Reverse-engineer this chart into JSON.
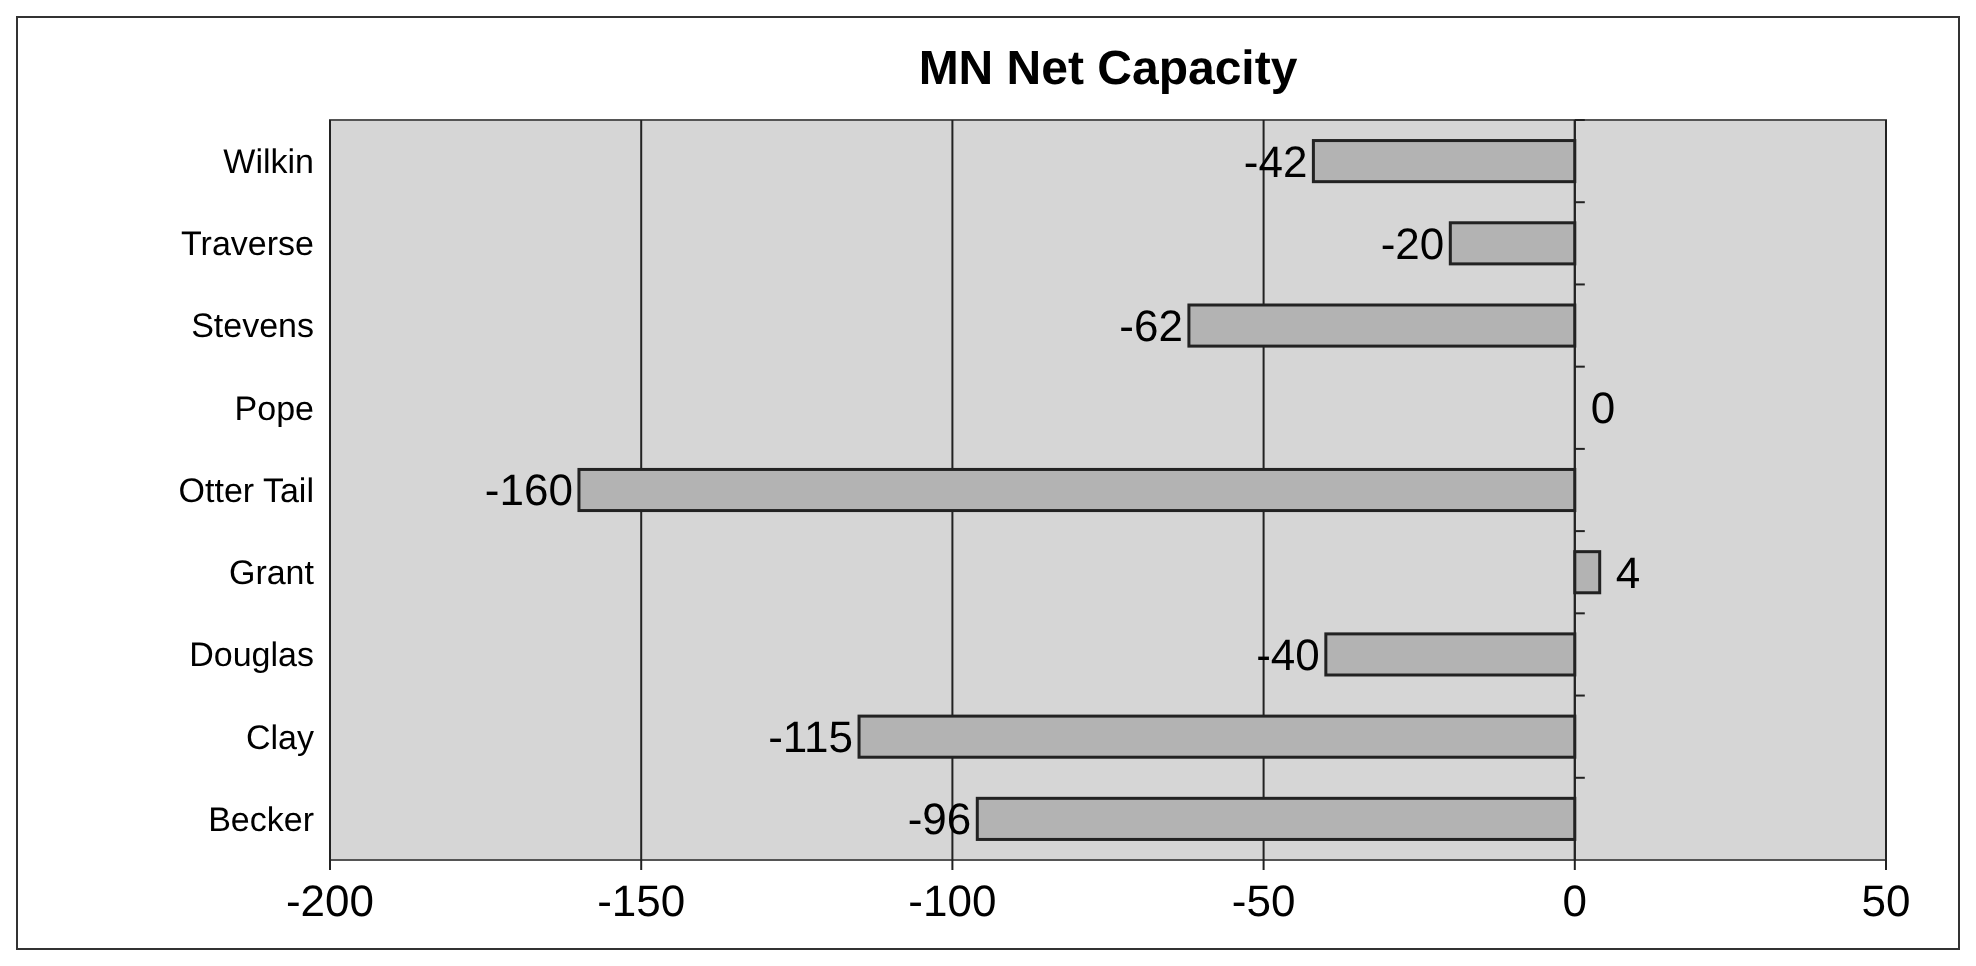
{
  "chart_data": {
    "type": "bar",
    "orientation": "horizontal",
    "title": "MN Net Capacity",
    "categories": [
      "Wilkin",
      "Traverse",
      "Stevens",
      "Pope",
      "Otter Tail",
      "Grant",
      "Douglas",
      "Clay",
      "Becker"
    ],
    "values": [
      -42,
      -20,
      -62,
      0,
      -160,
      4,
      -40,
      -115,
      -96
    ],
    "color": "#b3b3b3",
    "xlim": [
      -200,
      50
    ],
    "xticks": [
      -200,
      -150,
      -100,
      -50,
      0,
      50
    ],
    "grid": "x",
    "data_labels": true
  }
}
